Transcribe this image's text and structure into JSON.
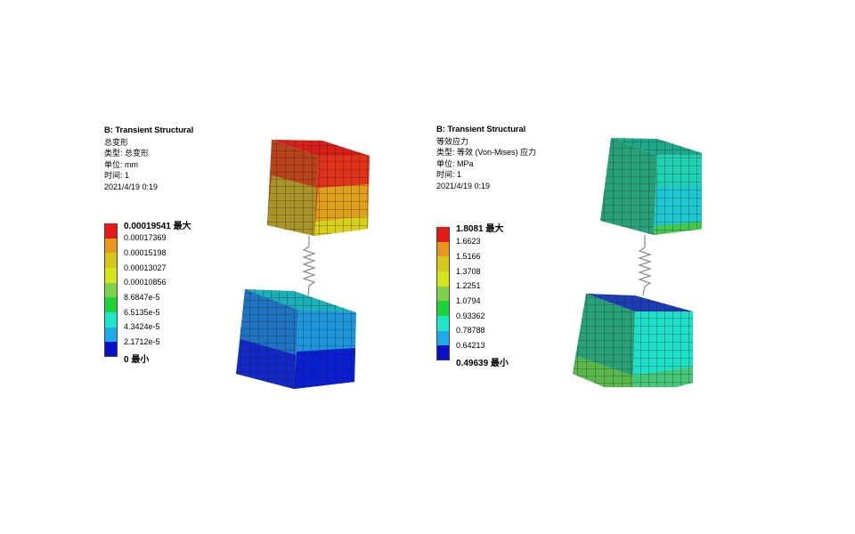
{
  "left": {
    "title": "B: Transient Structural",
    "result_name": "总变形",
    "type_line": "类型: 总变形",
    "unit_line": "单位: mm",
    "time_line": "时间: 1",
    "date_line": "2021/4/19 0:19",
    "legend": {
      "max_label": "0.00019541 最大",
      "levels": [
        "0.00017369",
        "0.00015198",
        "0.00013027",
        "0.00010856",
        "8.6847e-5",
        "6.5135e-5",
        "4.3424e-5",
        "2.1712e-5"
      ],
      "min_label": "0 最小",
      "colors": [
        "#e41a1a",
        "#e8961e",
        "#d6c81a",
        "#d2e61a",
        "#7ed24a",
        "#1ed23a",
        "#1ee6c8",
        "#1eaae6",
        "#1e5ad2",
        "#0a10c8"
      ]
    }
  },
  "right": {
    "title": "B: Transient Structural",
    "result_name": "等效应力",
    "type_line": "类型: 等效 (Von-Mises) 应力",
    "unit_line": "单位: MPa",
    "time_line": "时间: 1",
    "date_line": "2021/4/19 0:19",
    "legend": {
      "max_label": "1.8081 最大",
      "levels": [
        "1.6623",
        "1.5166",
        "1.3708",
        "1.2251",
        "1.0794",
        "0.93362",
        "0.78788",
        "0.64213"
      ],
      "min_label": "0.49639 最小",
      "colors": [
        "#e41a1a",
        "#e8961e",
        "#d6c81a",
        "#d2e61a",
        "#7ed24a",
        "#1ed23a",
        "#1ee6c8",
        "#1eaae6",
        "#1e5ad2",
        "#0a10c8"
      ]
    }
  }
}
